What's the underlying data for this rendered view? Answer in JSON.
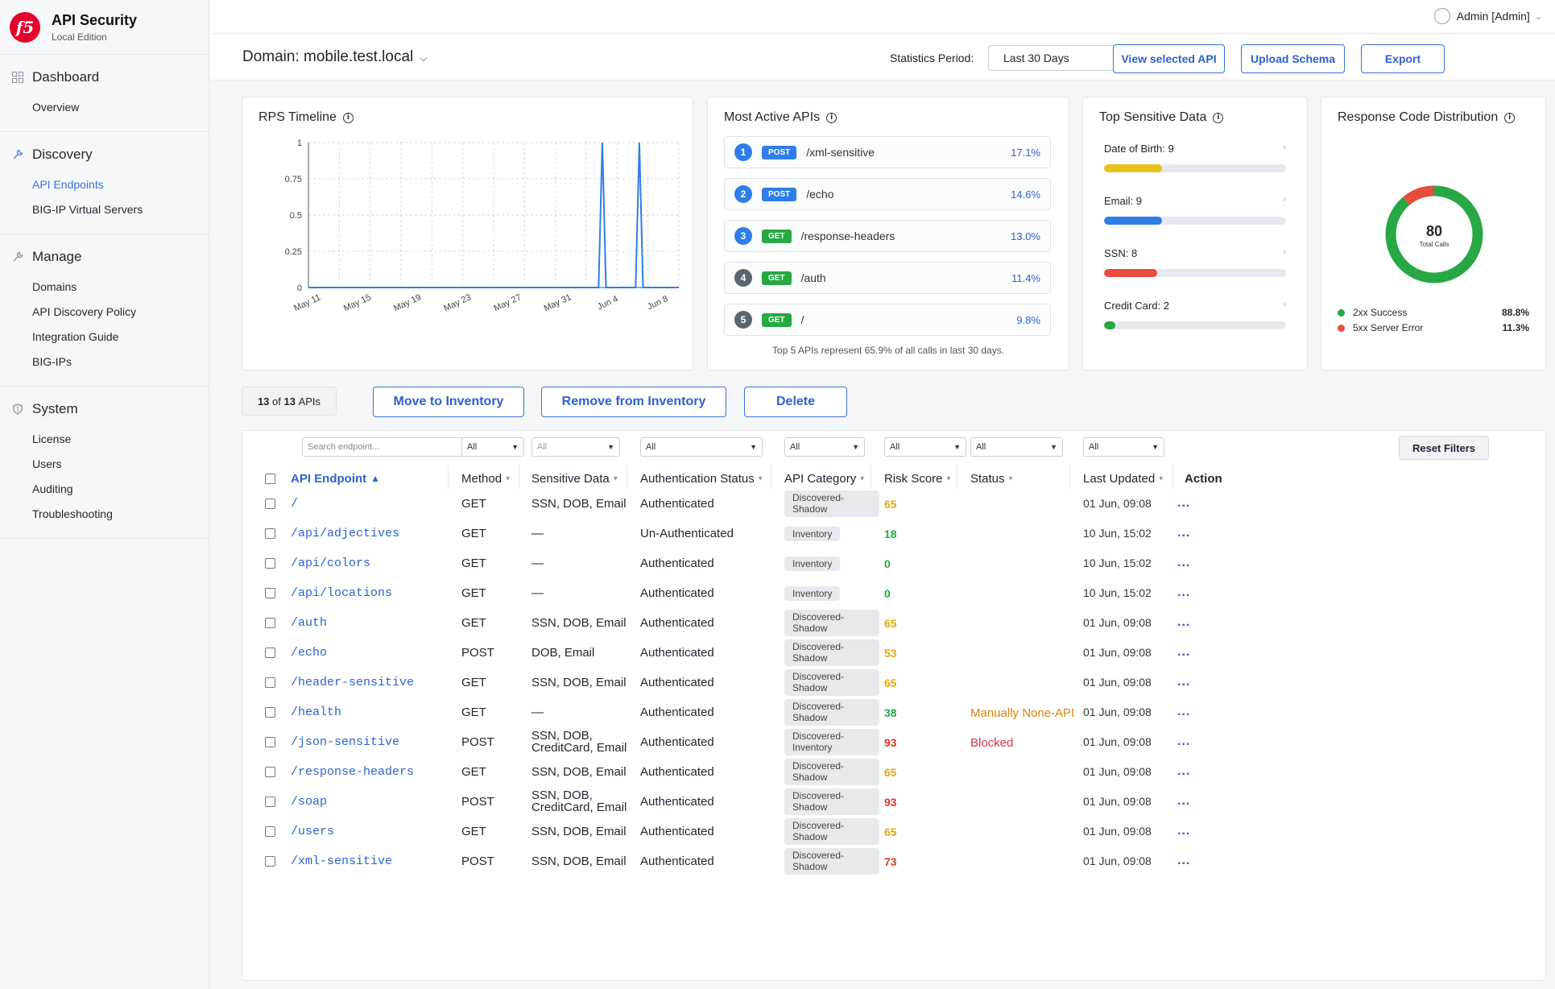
{
  "brand": {
    "logo": "f5",
    "title": "API Security",
    "subtitle": "Local Edition"
  },
  "nav": {
    "dashboard": {
      "label": "Dashboard",
      "items": [
        "Overview"
      ]
    },
    "discovery": {
      "label": "Discovery",
      "items": [
        "API Endpoints",
        "BIG-IP Virtual Servers"
      ]
    },
    "manage": {
      "label": "Manage",
      "items": [
        "Domains",
        "API Discovery Policy",
        "Integration Guide",
        "BIG-IPs"
      ]
    },
    "system": {
      "label": "System",
      "items": [
        "License",
        "Users",
        "Auditing",
        "Troubleshooting"
      ]
    }
  },
  "user": {
    "label": "Admin [Admin]"
  },
  "domain": {
    "label": "Domain: mobile.test.local"
  },
  "stats": {
    "label": "Statistics Period:",
    "value": "Last 30 Days"
  },
  "actions": {
    "view": "View selected API",
    "upload": "Upload Schema",
    "export": "Export"
  },
  "rps": {
    "title": "RPS Timeline",
    "chart_data": {
      "type": "line",
      "ylim": [
        0,
        1
      ],
      "yticks": [
        "0",
        "0.25",
        "0.5",
        "0.75",
        "1"
      ],
      "xticks": [
        "May 11",
        "May 15",
        "May 19",
        "May 23",
        "May 27",
        "May 31",
        "Jun 4",
        "Jun 8"
      ],
      "series": [
        {
          "points": [
            [
              0,
              0
            ],
            [
              23.5,
              0
            ],
            [
              23.8,
              1
            ],
            [
              24.1,
              0
            ],
            [
              26.5,
              0
            ],
            [
              26.8,
              1
            ],
            [
              27.1,
              0
            ],
            [
              30,
              0
            ]
          ]
        }
      ]
    }
  },
  "active": {
    "title": "Most Active APIs",
    "items": [
      {
        "rank": "1",
        "method": "POST",
        "path": "/xml-sensitive",
        "pct": "17.1%"
      },
      {
        "rank": "2",
        "method": "POST",
        "path": "/echo",
        "pct": "14.6%"
      },
      {
        "rank": "3",
        "method": "GET",
        "path": "/response-headers",
        "pct": "13.0%"
      },
      {
        "rank": "4",
        "method": "GET",
        "path": "/auth",
        "pct": "11.4%"
      },
      {
        "rank": "5",
        "method": "GET",
        "path": "/",
        "pct": "9.8%"
      }
    ],
    "footer": "Top 5 APIs represent 65.9% of all calls in last 30 days."
  },
  "sensitive": {
    "title": "Top Sensitive Data",
    "items": [
      {
        "label": "Date of Birth: 9",
        "fraction": 0.32,
        "color": "#e8c21b"
      },
      {
        "label": "Email: 9",
        "fraction": 0.32,
        "color": "#2f7de8"
      },
      {
        "label": "SSN: 8",
        "fraction": 0.29,
        "color": "#e74c3c"
      },
      {
        "label": "Credit Card: 2",
        "fraction": 0.06,
        "color": "#27a844"
      }
    ]
  },
  "response": {
    "title": "Response Code Distribution",
    "total": "80",
    "total_label": "Total Calls",
    "chart_data": {
      "type": "pie",
      "slices": [
        {
          "label": "2xx Success",
          "value": "88.8%",
          "fraction": 0.888,
          "color": "#27a844"
        },
        {
          "label": "5xx Server Error",
          "value": "11.3%",
          "fraction": 0.113,
          "color": "#e74c3c"
        }
      ]
    }
  },
  "toolbar": {
    "count_prefix": "13",
    "count_mid": "of",
    "count_total": "13",
    "count_suffix": "APIs",
    "move": "Move to Inventory",
    "remove": "Remove from Inventory",
    "delete": "Delete"
  },
  "filters": {
    "search_placeholder": "Search endpoint...",
    "all": "All",
    "reset": "Reset Filters"
  },
  "columns": [
    "API Endpoint",
    "Method",
    "Sensitive Data",
    "Authentication Status",
    "API Category",
    "Risk Score",
    "Status",
    "Last Updated",
    "Action"
  ],
  "rows": [
    {
      "endpoint": "/",
      "method": "GET",
      "sensitive": [
        "SSN, DOB, Email"
      ],
      "auth": "Authenticated",
      "category": [
        "Discovered-",
        "Shadow"
      ],
      "risk": "65",
      "risk_color": "#e6a800",
      "status": "",
      "status_color": "",
      "updated": "01 Jun, 09:08"
    },
    {
      "endpoint": "/api/adjectives",
      "method": "GET",
      "sensitive": [
        "—"
      ],
      "auth": "Un-Authenticated",
      "category": [
        "Inventory"
      ],
      "risk": "18",
      "risk_color": "#27a844",
      "status": "",
      "status_color": "",
      "updated": "10 Jun, 15:02"
    },
    {
      "endpoint": "/api/colors",
      "method": "GET",
      "sensitive": [
        "—"
      ],
      "auth": "Authenticated",
      "category": [
        "Inventory"
      ],
      "risk": "0",
      "risk_color": "#27a844",
      "status": "",
      "status_color": "",
      "updated": "10 Jun, 15:02"
    },
    {
      "endpoint": "/api/locations",
      "method": "GET",
      "sensitive": [
        "—"
      ],
      "auth": "Authenticated",
      "category": [
        "Inventory"
      ],
      "risk": "0",
      "risk_color": "#27a844",
      "status": "",
      "status_color": "",
      "updated": "10 Jun, 15:02"
    },
    {
      "endpoint": "/auth",
      "method": "GET",
      "sensitive": [
        "SSN, DOB, Email"
      ],
      "auth": "Authenticated",
      "category": [
        "Discovered-",
        "Shadow"
      ],
      "risk": "65",
      "risk_color": "#e6a800",
      "status": "",
      "status_color": "",
      "updated": "01 Jun, 09:08"
    },
    {
      "endpoint": "/echo",
      "method": "POST",
      "sensitive": [
        "DOB, Email"
      ],
      "auth": "Authenticated",
      "category": [
        "Discovered-",
        "Shadow"
      ],
      "risk": "53",
      "risk_color": "#e6a800",
      "status": "",
      "status_color": "",
      "updated": "01 Jun, 09:08"
    },
    {
      "endpoint": "/header-sensitive",
      "method": "GET",
      "sensitive": [
        "SSN, DOB, Email"
      ],
      "auth": "Authenticated",
      "category": [
        "Discovered-",
        "Shadow"
      ],
      "risk": "65",
      "risk_color": "#e6a800",
      "status": "",
      "status_color": "",
      "updated": "01 Jun, 09:08"
    },
    {
      "endpoint": "/health",
      "method": "GET",
      "sensitive": [
        "—"
      ],
      "auth": "Authenticated",
      "category": [
        "Discovered-",
        "Shadow"
      ],
      "risk": "38",
      "risk_color": "#27a844",
      "status": "Manually None-API",
      "status_color": "#d9840f",
      "updated": "01 Jun, 09:08"
    },
    {
      "endpoint": "/json-sensitive",
      "method": "POST",
      "sensitive": [
        "SSN, DOB,",
        "CreditCard, Email"
      ],
      "auth": "Authenticated",
      "category": [
        "Discovered-",
        "Inventory"
      ],
      "risk": "93",
      "risk_color": "#e0342b",
      "status": "Blocked",
      "status_color": "#d6334a",
      "updated": "01 Jun, 09:08"
    },
    {
      "endpoint": "/response-headers",
      "method": "GET",
      "sensitive": [
        "SSN, DOB, Email"
      ],
      "auth": "Authenticated",
      "category": [
        "Discovered-",
        "Shadow"
      ],
      "risk": "65",
      "risk_color": "#e6a800",
      "status": "",
      "status_color": "",
      "updated": "01 Jun, 09:08"
    },
    {
      "endpoint": "/soap",
      "method": "POST",
      "sensitive": [
        "SSN, DOB,",
        "CreditCard, Email"
      ],
      "auth": "Authenticated",
      "category": [
        "Discovered-",
        "Shadow"
      ],
      "risk": "93",
      "risk_color": "#e0342b",
      "status": "",
      "status_color": "",
      "updated": "01 Jun, 09:08"
    },
    {
      "endpoint": "/users",
      "method": "GET",
      "sensitive": [
        "SSN, DOB, Email"
      ],
      "auth": "Authenticated",
      "category": [
        "Discovered-",
        "Shadow"
      ],
      "risk": "65",
      "risk_color": "#e6a800",
      "status": "",
      "status_color": "",
      "updated": "01 Jun, 09:08"
    },
    {
      "endpoint": "/xml-sensitive",
      "method": "POST",
      "sensitive": [
        "SSN, DOB, Email"
      ],
      "auth": "Authenticated",
      "category": [
        "Discovered-",
        "Shadow"
      ],
      "risk": "73",
      "risk_color": "#e0342b",
      "status": "",
      "status_color": "",
      "updated": "01 Jun, 09:08"
    }
  ],
  "action_glyph": "...",
  "colors": {
    "accent": "#3a6fd8",
    "get": "#27a844",
    "post": "#2f7de8",
    "rank_blue": "#2f7de8",
    "rank_gray": "#5c6470"
  }
}
